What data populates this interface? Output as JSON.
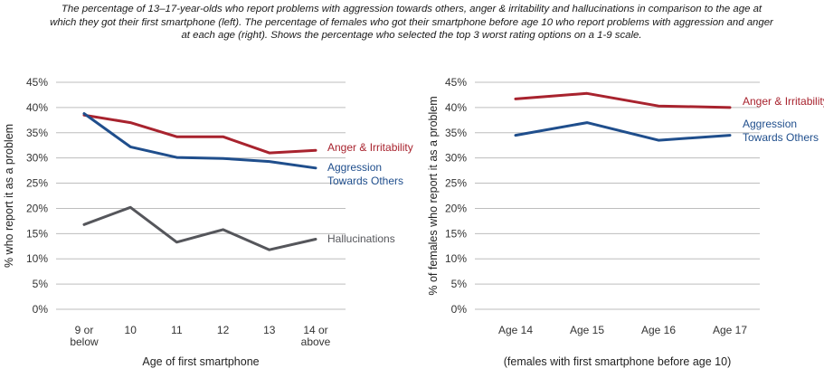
{
  "caption": "The percentage of 13–17-year-olds who report problems with aggression towards others, anger & irritability and hallucinations in comparison to the age at which they got their first smartphone (left). The percentage of females who got their smartphone before age 10 who report problems with aggression and anger at each age (right). Shows the percentage who selected the top 3 worst rating options on a 1-9 scale.",
  "colors": {
    "anger": "#a8232e",
    "aggression": "#1f4e8c",
    "hallucinations": "#55565b",
    "grid": "#bdbdbd"
  },
  "chart_data": [
    {
      "type": "line",
      "categories": [
        [
          "9 or",
          "below"
        ],
        [
          "10"
        ],
        [
          "11"
        ],
        [
          "12"
        ],
        [
          "13"
        ],
        [
          "14 or",
          "above"
        ]
      ],
      "xlabel": "Age of first smartphone",
      "ylabel": "% who report it as a problem",
      "ylim": [
        0,
        45
      ],
      "yticks": [
        "0%",
        "5%",
        "10%",
        "15%",
        "20%",
        "25%",
        "30%",
        "35%",
        "40%",
        "45%"
      ],
      "grid": true,
      "series": [
        {
          "name": "Anger & Irritability",
          "label_lines": [
            "Anger & Irritability"
          ],
          "color": "#a8232e",
          "values": [
            38.5,
            37,
            34.2,
            34.2,
            31,
            31.5
          ]
        },
        {
          "name": "Aggression Towards Others",
          "label_lines": [
            "Aggression",
            "Towards Others"
          ],
          "color": "#1f4e8c",
          "values": [
            38.8,
            32.2,
            30.1,
            29.9,
            29.3,
            28
          ]
        },
        {
          "name": "Hallucinations",
          "label_lines": [
            "Hallucinations"
          ],
          "color": "#55565b",
          "values": [
            16.8,
            20.2,
            13.3,
            15.8,
            11.8,
            13.9
          ]
        }
      ]
    },
    {
      "type": "line",
      "categories": [
        [
          "Age 14"
        ],
        [
          "Age 15"
        ],
        [
          "Age 16"
        ],
        [
          "Age 17"
        ]
      ],
      "xlabel": "(females with first smartphone before age 10)",
      "ylabel": "% of females who report it as a problem",
      "ylim": [
        0,
        45
      ],
      "yticks": [
        "0%",
        "5%",
        "10%",
        "15%",
        "20%",
        "25%",
        "30%",
        "35%",
        "40%",
        "45%"
      ],
      "grid": true,
      "series": [
        {
          "name": "Anger & Irritability",
          "label_lines": [
            "Anger & Irritability"
          ],
          "color": "#a8232e",
          "values": [
            41.7,
            42.8,
            40.3,
            40
          ]
        },
        {
          "name": "Aggression Towards Others",
          "label_lines": [
            "Aggression",
            "Towards Others"
          ],
          "color": "#1f4e8c",
          "values": [
            34.5,
            37,
            33.5,
            34.5
          ]
        }
      ]
    }
  ]
}
